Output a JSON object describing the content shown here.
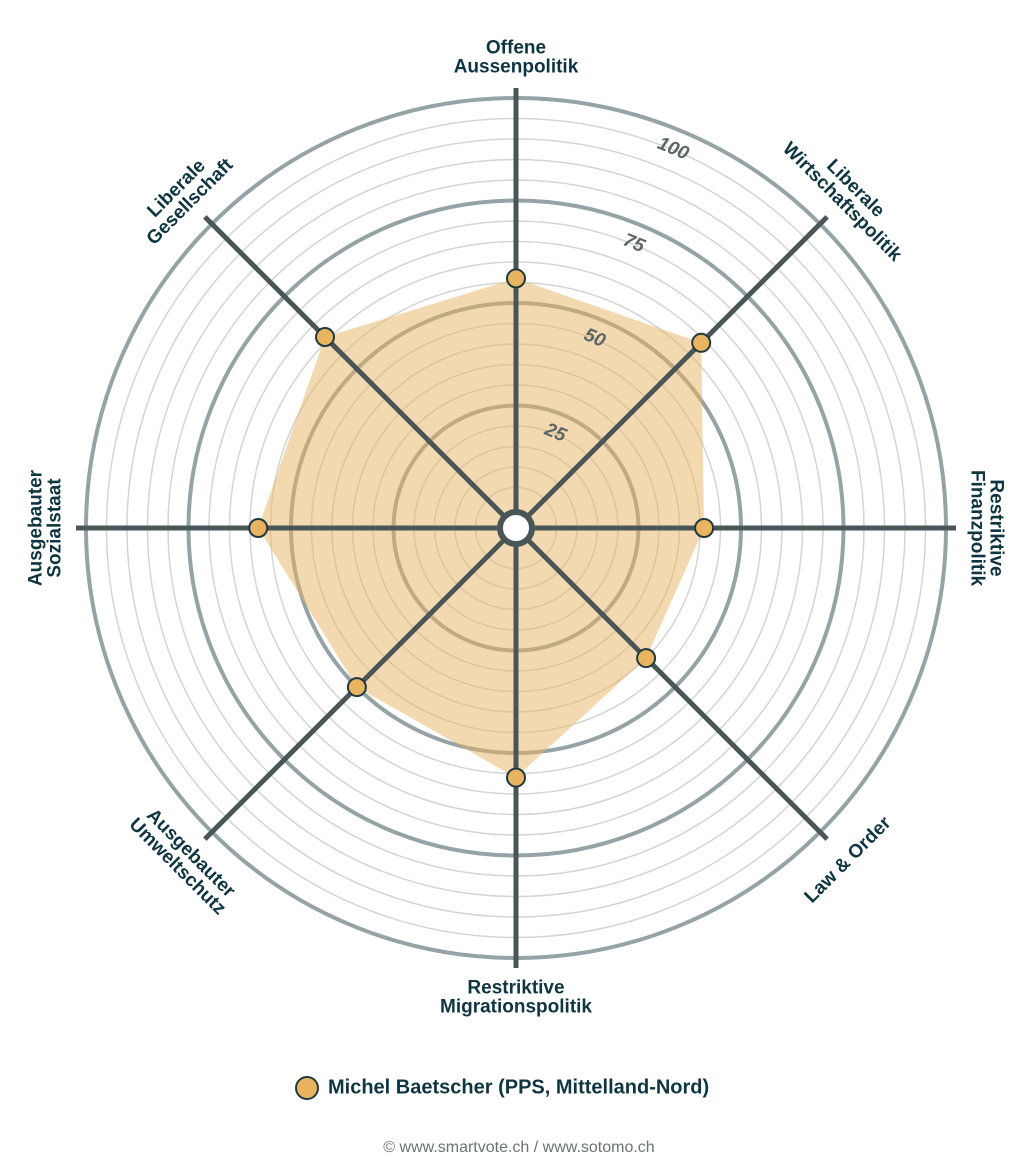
{
  "chart_data": {
    "type": "radar",
    "categories": [
      "Offene\nAussenpolitik",
      "Liberale\nWirtschaftspolitik",
      "Restriktive\nFinanzpolitik",
      "Law & Order",
      "Restriktive\nMigrationspolitik",
      "Ausgebauter\nUmweltschutz",
      "Ausgebauter\nSozialstaat",
      "Liberale\nGesellschaft"
    ],
    "series": [
      {
        "name": "Michel Baetscher (PPS, Mittelland-Nord)",
        "color": "#e8b460",
        "values": [
          56,
          59,
          41,
          40,
          56,
          50,
          58,
          61
        ]
      }
    ],
    "ylim": [
      0,
      100
    ],
    "yticks": [
      25,
      50,
      75,
      100
    ],
    "grid": true,
    "source": "© www.smartvote.ch / www.sotomo.ch"
  }
}
